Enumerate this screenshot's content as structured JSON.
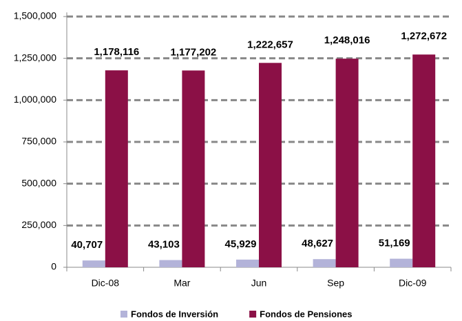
{
  "chart_data": {
    "type": "bar",
    "categories": [
      "Dic-08",
      "Mar",
      "Jun",
      "Sep",
      "Dic-09"
    ],
    "series": [
      {
        "name": "Fondos de Inversión",
        "color": "#b3b3d9",
        "values": [
          40707,
          43103,
          45929,
          48627,
          51169
        ],
        "value_labels": [
          "40,707",
          "43,103",
          "45,929",
          "48,627",
          "51,169"
        ]
      },
      {
        "name": "Fondos de Pensiones",
        "color": "#8b1046",
        "values": [
          1178116,
          1177202,
          1222657,
          1248016,
          1272672
        ],
        "value_labels": [
          "1,178,116",
          "1,177,202",
          "1,222,657",
          "1,248,016",
          "1,272,672"
        ]
      }
    ],
    "ylim": [
      0,
      1500000
    ],
    "yticks": [
      0,
      {
        "value": 250000,
        "label": "250,000"
      },
      {
        "value": 500000,
        "label": "500,000"
      },
      {
        "value": 750000,
        "label": "750,000"
      },
      {
        "value": 1000000,
        "label": "1,000,000"
      },
      {
        "value": 1250000,
        "label": "1,250,000"
      },
      {
        "value": 1500000,
        "label": "1,500,000"
      }
    ],
    "grid": true,
    "legend": "bottom"
  }
}
